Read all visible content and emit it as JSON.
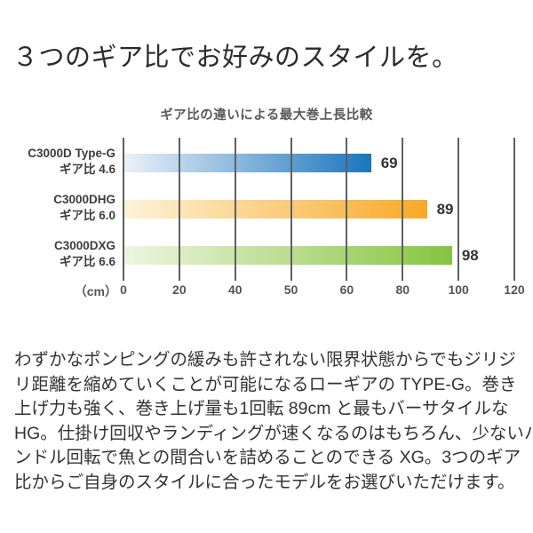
{
  "page": {
    "title": "３つのギア比でお好みのスタイルを。"
  },
  "chart_data": {
    "type": "bar",
    "orientation": "horizontal",
    "title": "ギア比の違いによる最大巻上長比較",
    "unit_label": "（cm）",
    "axis_ticks": [
      0,
      20,
      40,
      50,
      60,
      80,
      100,
      120
    ],
    "grid": true,
    "gridline_color": "#5f5f5f",
    "rows": [
      {
        "model": "C3000D Type-G",
        "gear_label": "ギア比 4.6",
        "value": 69,
        "color": "#1B75BC",
        "color_light": "#EAF1F9"
      },
      {
        "model": "C3000DHG",
        "gear_label": "ギア比 6.0",
        "value": 89,
        "color": "#F7A928",
        "color_light": "#FDF2D8"
      },
      {
        "model": "C3000DXG",
        "gear_label": "ギア比 6.6",
        "value": 98,
        "color": "#86C440",
        "color_light": "#EEF5E0"
      }
    ]
  },
  "body": {
    "lines": [
      "わずかなポンピングの緩みも許されない限界状態からでもジリジ",
      "リ距離を縮めていくことが可能になるローギアの TYPE-G。巻き",
      "上げ力も強く、巻き上げ量も1回転 89cm と最もバーサタイルな",
      "HG。仕掛け回収やランディングが速くなるのはもちろん、少ないハ",
      "ンドル回転で魚との間合いを詰めることのできる XG。3つのギア",
      "比からご自身のスタイルに合ったモデルをお選びいただけます。"
    ]
  }
}
